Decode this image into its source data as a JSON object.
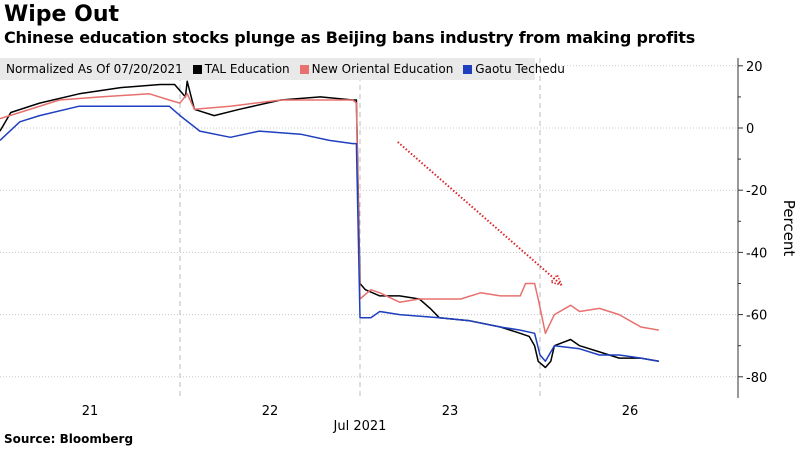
{
  "title": "Wipe Out",
  "subtitle": "Chinese education stocks plunge as Beijing bans industry from making profits",
  "source": "Source: Bloomberg",
  "chart_data": {
    "type": "line",
    "legend_title": "Normalized As Of 07/20/2021",
    "legend_placement": "top-left",
    "ylabel": "Percent",
    "ylim": [
      -86,
      22
    ],
    "yticks": [
      20,
      0,
      -20,
      -40,
      -60,
      -80
    ],
    "xlim": [
      0,
      4.1
    ],
    "xticks": [
      {
        "x": 0.5,
        "label": "21"
      },
      {
        "x": 1.5,
        "label": "22"
      },
      {
        "x": 2.5,
        "label": "23"
      },
      {
        "x": 3.5,
        "label": "26"
      }
    ],
    "x_period_label": "Jul 2021",
    "session_breaks": [
      1,
      2,
      3
    ],
    "grid": true,
    "series": [
      {
        "name": "TAL Education",
        "color": "#000000",
        "x": [
          0,
          0.06,
          0.22,
          0.44,
          0.67,
          0.89,
          0.97,
          1.03,
          1.04,
          1.08,
          1.19,
          1.33,
          1.56,
          1.78,
          1.96,
          1.98,
          2.0,
          2.03,
          2.11,
          2.22,
          2.33,
          2.39,
          2.44,
          2.61,
          2.78,
          2.89,
          2.94,
          2.97,
          2.99,
          3.03,
          3.06,
          3.08,
          3.17,
          3.22,
          3.33,
          3.44,
          3.56,
          3.66
        ],
        "y": [
          -1,
          5,
          8,
          11,
          13,
          14,
          14,
          10,
          15,
          6,
          4,
          6,
          9,
          10,
          9,
          9,
          -50,
          -52,
          -54,
          -54,
          -55,
          -58,
          -61,
          -62,
          -64,
          -66,
          -67,
          -70,
          -75,
          -77,
          -75,
          -70,
          -68,
          -70,
          -72,
          -74,
          -74,
          -75
        ]
      },
      {
        "name": "New Oriental Education",
        "color": "#e8706f",
        "x": [
          0,
          0.11,
          0.33,
          0.56,
          0.83,
          0.94,
          1.0,
          1.04,
          1.08,
          1.28,
          1.56,
          1.78,
          1.96,
          1.98,
          2.0,
          2.06,
          2.11,
          2.22,
          2.33,
          2.44,
          2.56,
          2.67,
          2.78,
          2.89,
          2.92,
          2.97,
          2.99,
          3.03,
          3.08,
          3.17,
          3.22,
          3.33,
          3.44,
          3.56,
          3.66
        ],
        "y": [
          3,
          5,
          9,
          10,
          11,
          9,
          8,
          11,
          6,
          7,
          9,
          9,
          9,
          8,
          -55,
          -52,
          -53,
          -56,
          -55,
          -55,
          -55,
          -53,
          -54,
          -54,
          -50,
          -50,
          -55,
          -66,
          -60,
          -57,
          -59,
          -58,
          -60,
          -64,
          -65
        ]
      },
      {
        "name": "Gaotu Techedu",
        "color": "#1f3fbf",
        "x": [
          0,
          0.11,
          0.22,
          0.44,
          0.67,
          0.94,
          1.0,
          1.11,
          1.28,
          1.44,
          1.67,
          1.83,
          1.96,
          1.98,
          2.0,
          2.06,
          2.11,
          2.22,
          2.44,
          2.61,
          2.78,
          2.89,
          2.97,
          3.0,
          3.03,
          3.08,
          3.22,
          3.33,
          3.44,
          3.56,
          3.66
        ],
        "y": [
          -4,
          2,
          4,
          7,
          7,
          7,
          4,
          -1,
          -3,
          -1,
          -2,
          -4,
          -5,
          -5,
          -61,
          -61,
          -59,
          -60,
          -61,
          -62,
          -64,
          -65,
          -66,
          -73,
          -75,
          -70,
          -71,
          -73,
          -73,
          -74,
          -75
        ]
      }
    ],
    "annotations": [
      {
        "type": "arrow",
        "style": "dotted",
        "color": "#d9262b",
        "from": [
          2.21,
          -4.5
        ],
        "to": [
          3.12,
          -50.5
        ]
      }
    ]
  }
}
